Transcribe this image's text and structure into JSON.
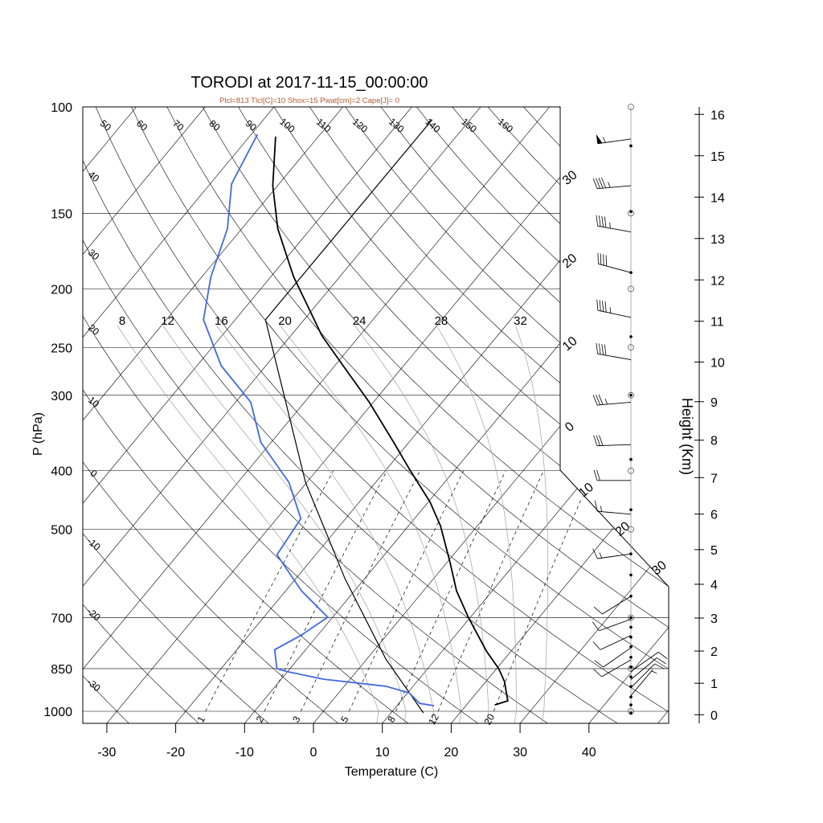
{
  "title": "TORODI at 2017-11-15_00:00:00",
  "subtitle": "Plcl=813 Tlcl[C]=10 Shox=15 Pwat[cm]=2 Cape[J]= 0",
  "colors": {
    "temperature": "#000000",
    "dewpoint": "#4169e1",
    "subtitle": "#b05a30",
    "grid": "#000000",
    "moist": "#a0a0a0"
  },
  "chart_data": {
    "type": "skew-t",
    "title": "TORODI at 2017-11-15_00:00:00",
    "xlabel": "Temperature (C)",
    "ylabel": "P (hPa)",
    "y2label": "Height (Km)",
    "xlim": [
      -35,
      52
    ],
    "ylim": [
      1050,
      100
    ],
    "x_ticks": [
      "-30",
      "-20",
      "-10",
      "0",
      "10",
      "20",
      "30",
      "40"
    ],
    "isobars": [
      100,
      150,
      200,
      250,
      300,
      400,
      500,
      700,
      850,
      1000
    ],
    "isobar_labels": [
      "100",
      "150",
      "200",
      "250",
      "300",
      "400",
      "500",
      "700",
      "850",
      "1000"
    ],
    "height_ticks": [
      "0",
      "1",
      "2",
      "3",
      "4",
      "5",
      "6",
      "7",
      "8",
      "9",
      "10",
      "11",
      "12",
      "13",
      "14",
      "15",
      "16"
    ],
    "isotherm_labels": [
      {
        "t": -30,
        "label": "30"
      },
      {
        "t": -20,
        "label": "20"
      },
      {
        "t": -10,
        "label": "10"
      },
      {
        "t": 0,
        "label": "0"
      },
      {
        "t": 10,
        "label": "10"
      },
      {
        "t": 20,
        "label": "20"
      },
      {
        "t": 30,
        "label": "30"
      }
    ],
    "dry_adiabat_top_labels": [
      "50",
      "60",
      "70",
      "80",
      "90",
      "100",
      "110",
      "120",
      "130",
      "140",
      "150",
      "160"
    ],
    "dry_adiabat_left_labels": [
      "40",
      "30",
      "20",
      "10",
      "0",
      "-10",
      "-20",
      "-30"
    ],
    "moist_adiabat_labels": [
      "8",
      "12",
      "16",
      "20",
      "24",
      "28",
      "32"
    ],
    "mixing_ratio_labels": [
      "1",
      "2",
      "3",
      "5",
      "8",
      "12",
      "20"
    ],
    "temperature": [
      [
        976,
        24.1
      ],
      [
        961,
        25.5
      ],
      [
        893,
        22.7
      ],
      [
        850,
        20.3
      ],
      [
        795,
        16.4
      ],
      [
        699,
        9.7
      ],
      [
        632,
        4.8
      ],
      [
        568,
        0.5
      ],
      [
        494,
        -5.3
      ],
      [
        451,
        -9.7
      ],
      [
        399,
        -16.5
      ],
      [
        359,
        -22.2
      ],
      [
        308,
        -30.6
      ],
      [
        268,
        -38.8
      ],
      [
        239,
        -45.5
      ],
      [
        191,
        -56.7
      ],
      [
        159,
        -64.8
      ],
      [
        135,
        -70.7
      ],
      [
        112,
        -76.2
      ]
    ],
    "dewpoint": [
      [
        979,
        15.4
      ],
      [
        970,
        13.0
      ],
      [
        932,
        10.2
      ],
      [
        909,
        6.0
      ],
      [
        885,
        -3.8
      ],
      [
        859,
        -10.2
      ],
      [
        850,
        -11.9
      ],
      [
        791,
        -14.5
      ],
      [
        748,
        -12.4
      ],
      [
        699,
        -10.7
      ],
      [
        632,
        -17.7
      ],
      [
        551,
        -25.6
      ],
      [
        480,
        -26.5
      ],
      [
        418,
        -32.6
      ],
      [
        359,
        -41.5
      ],
      [
        308,
        -47.8
      ],
      [
        268,
        -56.5
      ],
      [
        225,
        -64.6
      ],
      [
        191,
        -68.7
      ],
      [
        159,
        -72.1
      ],
      [
        134,
        -76.9
      ],
      [
        111,
        -79.1
      ]
    ],
    "parcel": [
      [
        1006,
        14.7
      ],
      [
        820,
        2.8
      ],
      [
        604,
        -12.8
      ],
      [
        418,
        -30.2
      ],
      [
        225,
        -55.6
      ],
      [
        105,
        -55.5
      ]
    ],
    "wind_barbs": [
      [
        113,
        262,
        55
      ],
      [
        135,
        265,
        45
      ],
      [
        161,
        280,
        45
      ],
      [
        188,
        285,
        40
      ],
      [
        223,
        282,
        45
      ],
      [
        262,
        280,
        40
      ],
      [
        308,
        265,
        35
      ],
      [
        362,
        268,
        30
      ],
      [
        415,
        270,
        20
      ],
      [
        472,
        275,
        15
      ],
      [
        549,
        262,
        15
      ],
      [
        645,
        238,
        10
      ],
      [
        704,
        250,
        10
      ],
      [
        749,
        245,
        10
      ],
      [
        785,
        235,
        10
      ],
      [
        822,
        240,
        10
      ],
      [
        859,
        55,
        10
      ],
      [
        886,
        50,
        10
      ],
      [
        914,
        45,
        10
      ],
      [
        942,
        40,
        5
      ]
    ],
    "sounding_levels": [
      116,
      149,
      188,
      240,
      300,
      383,
      464,
      549,
      595,
      645,
      700,
      726,
      754,
      782,
      814,
      845,
      877,
      910,
      947,
      976,
      1007
    ],
    "standard_levels": [
      100,
      150,
      200,
      250,
      300,
      400,
      500,
      700,
      850,
      1000
    ]
  }
}
